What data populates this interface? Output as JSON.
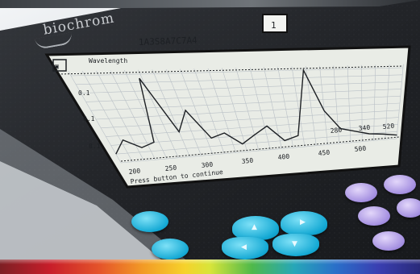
{
  "device": {
    "brand": "biochrom",
    "serial_text": "1A3S8A7C7A4",
    "mode_indicator": "1"
  },
  "screen": {
    "header_text": "Wavelength",
    "y_tick_labels": [
      "0.1",
      "0.1",
      "0.1"
    ],
    "x_tick_labels": [
      "200",
      "250",
      "300",
      "350",
      "400",
      "450",
      "500"
    ],
    "footer_text": "Press button to continue",
    "peak_labels": [
      "280",
      "340",
      "520"
    ]
  },
  "chart_data": {
    "type": "line",
    "title": "",
    "xlabel": "",
    "ylabel": "",
    "grid": true,
    "x": [
      0,
      0.05,
      0.1,
      0.15,
      0.2,
      0.25,
      0.3,
      0.35,
      0.4,
      0.45,
      0.5,
      0.55,
      0.6,
      0.65,
      0.7,
      0.75,
      0.8,
      0.85,
      0.9,
      0.95,
      1
    ],
    "series": [
      {
        "values": [
          0.1,
          0.25,
          0.15,
          0.2,
          0.95,
          0.3,
          0.55,
          0.2,
          0.25,
          0.1,
          0.2,
          0.3,
          0.1,
          0.15,
          1.0,
          0.45,
          0.2,
          0.15,
          0.1,
          0.08,
          0.05
        ]
      }
    ]
  },
  "colors": {
    "housing": "#1f2125",
    "lcd_background": "#e9ece6",
    "lcd_ink": "#1d2024",
    "button_cyan": "#14a9d4",
    "button_lilac": "#a38ee0"
  },
  "icons": [
    "arrow-up-icon",
    "arrow-down-icon",
    "arrow-left-icon",
    "arrow-right-icon"
  ]
}
